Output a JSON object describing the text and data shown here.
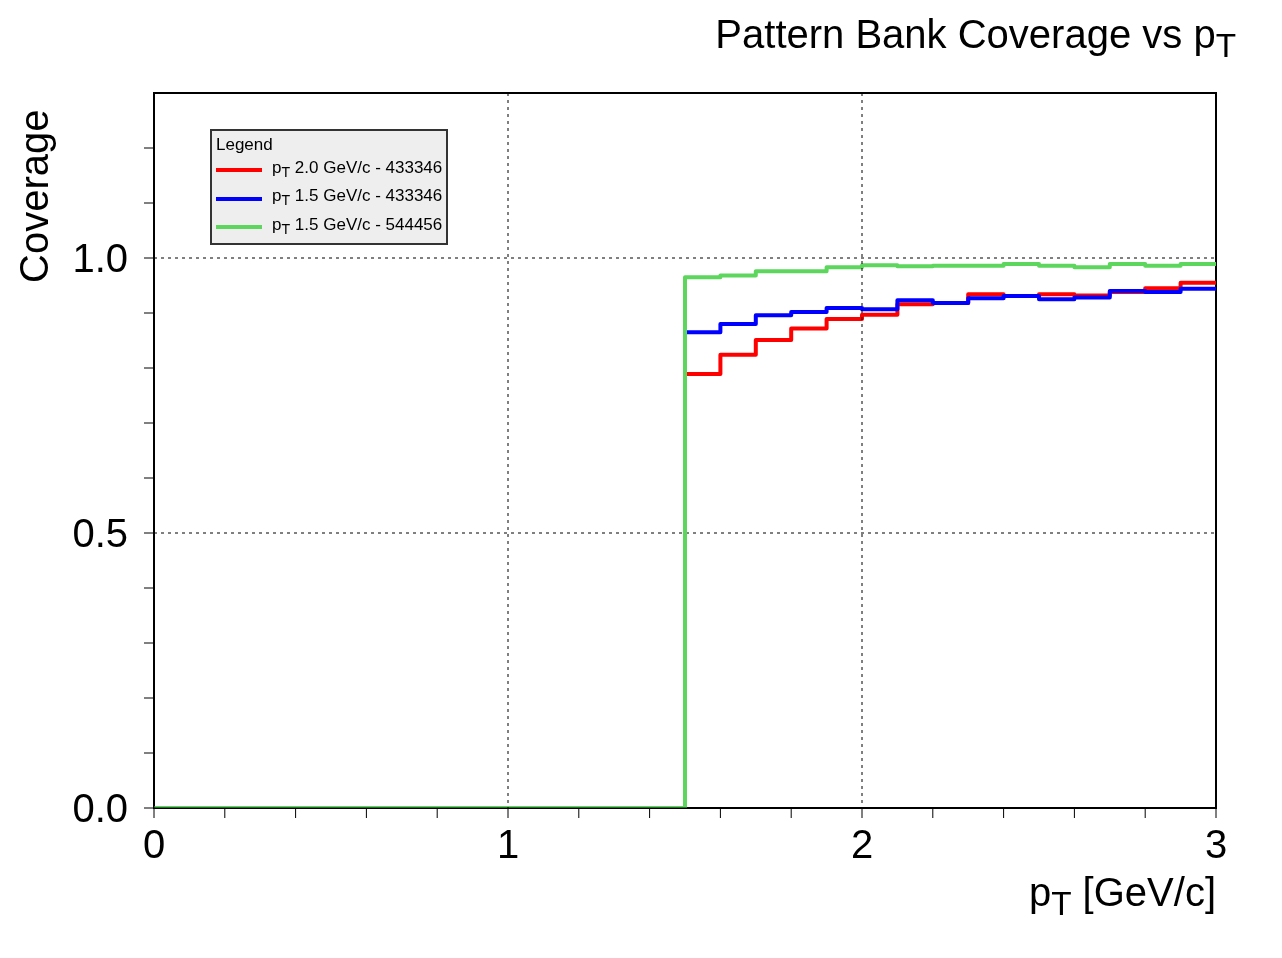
{
  "chart_data": {
    "type": "histogram",
    "title": "Pattern Bank Coverage vs p$_{T}$",
    "xlabel": "p$_{T}$ [GeV/c]",
    "ylabel": "Coverage",
    "legend_title": "Legend",
    "bins": [
      0,
      0.1,
      0.2,
      0.3,
      0.4,
      0.5,
      0.6,
      0.7,
      0.8,
      0.9,
      1.0,
      1.1,
      1.2,
      1.3,
      1.4,
      1.5,
      1.6,
      1.7,
      1.8,
      1.9,
      2.0,
      2.1,
      2.2,
      2.3,
      2.4,
      2.5,
      2.6,
      2.7,
      2.8,
      2.9,
      3.0
    ],
    "series": [
      {
        "name": "p$_{T}$ 2.0 GeV/c - 433346",
        "color": "#ff0000",
        "values": [
          0,
          0,
          0,
          0,
          0,
          0,
          0,
          0,
          0,
          0,
          0,
          0,
          0,
          0,
          0,
          0.789,
          0.824,
          0.851,
          0.872,
          0.889,
          0.897,
          0.916,
          0.918,
          0.934,
          0.931,
          0.934,
          0.932,
          0.938,
          0.945,
          0.955
        ]
      },
      {
        "name": "p$_{T}$ 1.5 GeV/c - 433346",
        "color": "#0000ff",
        "values": [
          0,
          0,
          0,
          0,
          0,
          0,
          0,
          0,
          0,
          0,
          0,
          0,
          0,
          0,
          0,
          0.865,
          0.88,
          0.896,
          0.902,
          0.909,
          0.907,
          0.923,
          0.918,
          0.927,
          0.931,
          0.925,
          0.928,
          0.94,
          0.938,
          0.944
        ]
      },
      {
        "name": "p$_{T}$ 1.5 GeV/c - 544456",
        "color": "#5cd65c",
        "values": [
          0,
          0,
          0,
          0,
          0,
          0,
          0,
          0,
          0,
          0,
          0,
          0,
          0,
          0,
          0,
          0.965,
          0.968,
          0.976,
          0.976,
          0.983,
          0.987,
          0.985,
          0.986,
          0.986,
          0.989,
          0.986,
          0.983,
          0.989,
          0.986,
          0.989
        ]
      }
    ],
    "xlim": [
      0,
      3
    ],
    "xticks": [
      0,
      {
        "value": 0.2,
        "label": null
      },
      {
        "value": 0.4,
        "label": null
      },
      {
        "value": 0.6,
        "label": null
      },
      {
        "value": 0.8,
        "label": null
      },
      1,
      {
        "value": 1.2,
        "label": null
      },
      {
        "value": 1.4,
        "label": null
      },
      {
        "value": 1.6,
        "label": null
      },
      {
        "value": 1.8,
        "label": null
      },
      2,
      {
        "value": 2.2,
        "label": null
      },
      {
        "value": 2.4,
        "label": null
      },
      {
        "value": 2.6,
        "label": null
      },
      {
        "value": 2.8,
        "label": null
      },
      3
    ],
    "ylim": [
      0,
      1.3
    ],
    "yticks": [
      {
        "value": 0,
        "label": "0.0"
      },
      {
        "value": 0.1,
        "label": null
      },
      {
        "value": 0.2,
        "label": null
      },
      {
        "value": 0.3,
        "label": null
      },
      {
        "value": 0.4,
        "label": null
      },
      {
        "value": 0.5,
        "label": "0.5"
      },
      {
        "value": 0.6,
        "label": null
      },
      {
        "value": 0.7,
        "label": null
      },
      {
        "value": 0.8,
        "label": null
      },
      {
        "value": 0.9,
        "label": null
      },
      {
        "value": 1.0,
        "label": "1.0"
      },
      {
        "value": 1.1,
        "label": null
      },
      {
        "value": 1.2,
        "label": null
      }
    ],
    "grid": true,
    "legend": "top left",
    "line_style": "solid"
  }
}
